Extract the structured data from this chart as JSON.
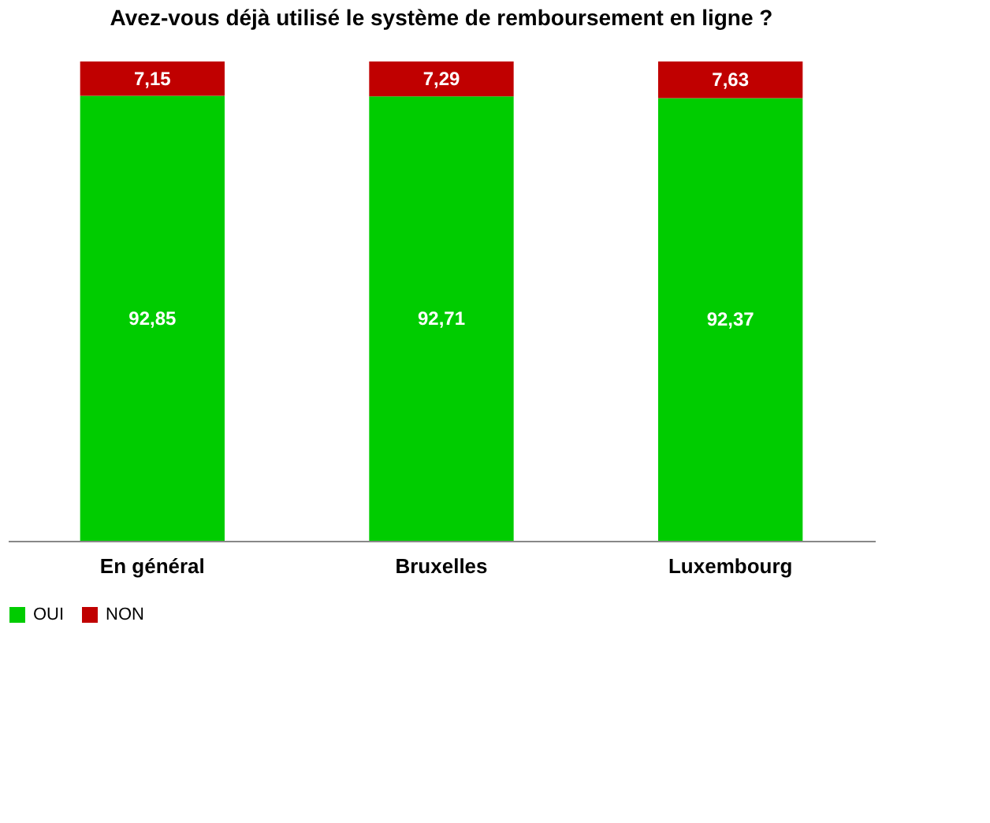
{
  "chart_data": {
    "type": "bar",
    "title": "Avez-vous déjà utilisé le système de remboursement en ligne ?",
    "categories": [
      "En général",
      "Bruxelles",
      "Luxembourg"
    ],
    "stacked": true,
    "legend": "bottom left",
    "grid": false,
    "tick_labels": "x",
    "series": [
      {
        "name": "OUI",
        "color": "#00cc00",
        "values": [
          92.85,
          92.71,
          92.37
        ],
        "value_labels": [
          "92,85",
          "92,71",
          "92,37"
        ]
      },
      {
        "name": "NON",
        "color": "#c00000",
        "values": [
          7.15,
          7.29,
          7.63
        ],
        "value_labels": [
          "7,15",
          "7,29",
          "7,63"
        ]
      }
    ]
  }
}
